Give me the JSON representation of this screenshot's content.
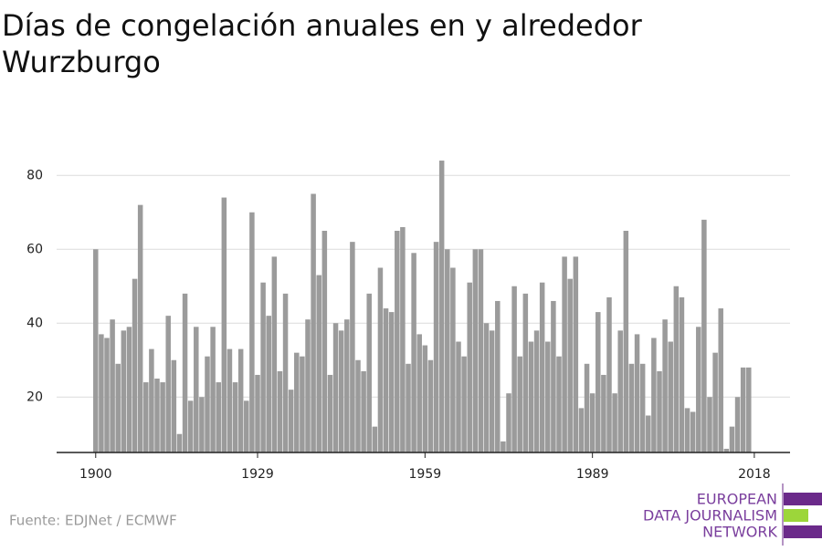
{
  "chart_data": {
    "type": "bar",
    "title": "Días de congelación anuales en y alrededor Wurzburgo",
    "source": "Fuente: EDJNet / ECMWF",
    "logo": [
      "EUROPEAN",
      "DATA JOURNALISM",
      "NETWORK"
    ],
    "color": "#9b9b9b",
    "x": [
      1900,
      1901,
      1902,
      1903,
      1904,
      1905,
      1906,
      1907,
      1908,
      1909,
      1910,
      1911,
      1912,
      1913,
      1914,
      1915,
      1916,
      1917,
      1918,
      1919,
      1920,
      1921,
      1922,
      1923,
      1924,
      1925,
      1926,
      1927,
      1928,
      1929,
      1930,
      1931,
      1932,
      1933,
      1934,
      1935,
      1936,
      1937,
      1938,
      1939,
      1940,
      1941,
      1942,
      1943,
      1944,
      1945,
      1946,
      1947,
      1948,
      1949,
      1950,
      1951,
      1952,
      1953,
      1954,
      1955,
      1956,
      1957,
      1958,
      1959,
      1960,
      1961,
      1962,
      1963,
      1964,
      1965,
      1966,
      1967,
      1968,
      1969,
      1970,
      1971,
      1972,
      1973,
      1974,
      1975,
      1976,
      1977,
      1978,
      1979,
      1980,
      1981,
      1982,
      1983,
      1984,
      1985,
      1986,
      1987,
      1988,
      1989,
      1990,
      1991,
      1992,
      1993,
      1994,
      1995,
      1996,
      1997,
      1998,
      1999,
      2000,
      2001,
      2002,
      2003,
      2004,
      2005,
      2006,
      2007,
      2008,
      2009,
      2010,
      2011,
      2012,
      2013,
      2014,
      2015,
      2016,
      2017
    ],
    "values": [
      60,
      37,
      36,
      41,
      29,
      38,
      39,
      52,
      72,
      24,
      33,
      25,
      24,
      42,
      30,
      10,
      48,
      19,
      39,
      20,
      31,
      39,
      24,
      74,
      33,
      24,
      33,
      19,
      70,
      26,
      51,
      42,
      58,
      27,
      48,
      22,
      32,
      31,
      41,
      75,
      53,
      65,
      26,
      40,
      38,
      41,
      62,
      30,
      27,
      48,
      12,
      55,
      44,
      43,
      65,
      66,
      29,
      59,
      37,
      34,
      30,
      62,
      84,
      60,
      55,
      35,
      31,
      51,
      60,
      60,
      40,
      38,
      46,
      8,
      21,
      50,
      31,
      48,
      35,
      38,
      51,
      35,
      46,
      31,
      58,
      52,
      58,
      17,
      29,
      21,
      43,
      26,
      47,
      21,
      38,
      65,
      29,
      37,
      29,
      15,
      36,
      27,
      41,
      35,
      50,
      47,
      17,
      16,
      39,
      68,
      20,
      32,
      44,
      6,
      12,
      20,
      28,
      28
    ],
    "xlim": [
      1893,
      2024.4
    ],
    "xticks": [
      1900,
      1929,
      1959,
      1989,
      2018
    ],
    "ylim": [
      5,
      85
    ],
    "yticks": [
      20,
      40,
      60,
      80
    ],
    "grid": true
  }
}
